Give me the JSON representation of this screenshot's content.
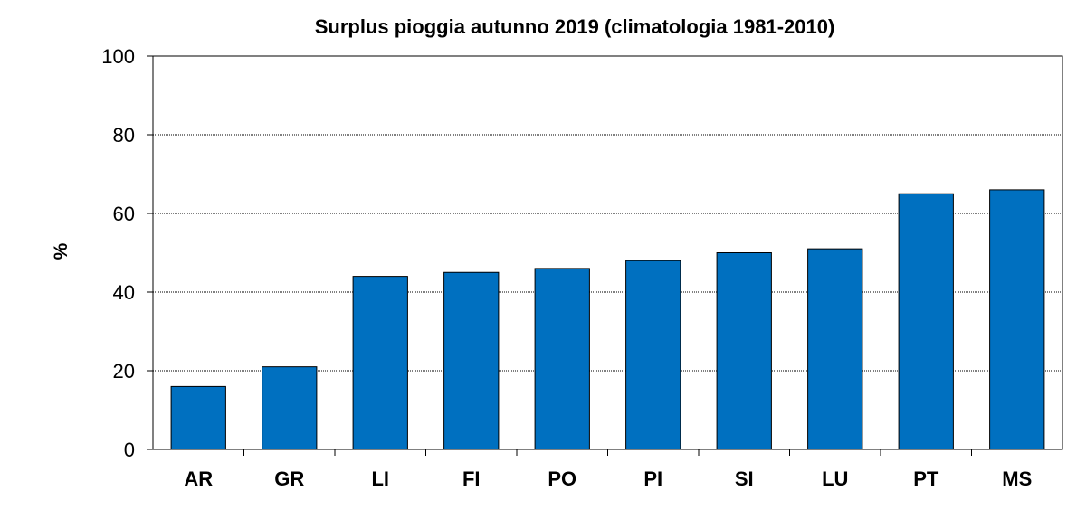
{
  "chart_data": {
    "type": "bar",
    "title": "Surplus pioggia autunno 2019 (climatologia 1981-2010)",
    "xlabel": "",
    "ylabel": "%",
    "categories": [
      "AR",
      "GR",
      "LI",
      "FI",
      "PO",
      "PI",
      "SI",
      "LU",
      "PT",
      "MS"
    ],
    "values": [
      16,
      21,
      44,
      45,
      46,
      48,
      50,
      51,
      65,
      66
    ],
    "ylim": [
      0,
      100
    ],
    "yticks": [
      0,
      20,
      40,
      60,
      80,
      100
    ],
    "grid": true,
    "legend": "none",
    "bar_color": "#0070C0"
  }
}
